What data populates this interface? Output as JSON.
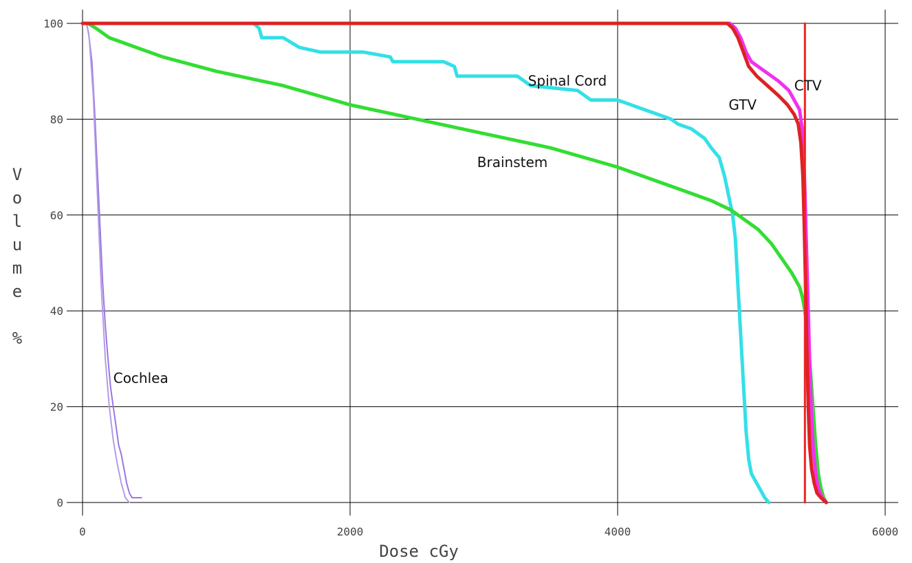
{
  "chart_data": {
    "type": "line",
    "xlabel": "Dose cGy",
    "ylabel": "Volume %",
    "xlim": [
      0,
      6000
    ],
    "ylim": [
      0,
      100
    ],
    "x_ticks": [
      0,
      2000,
      4000,
      6000
    ],
    "y_ticks": [
      0,
      20,
      40,
      60,
      80,
      100
    ],
    "grid": true,
    "series": [
      {
        "name": "Cochlea",
        "color": "#9977dd",
        "stroke_width": 2,
        "label_at": [
          230,
          25
        ],
        "x": [
          30,
          45,
          70,
          90,
          110,
          130,
          150,
          170,
          190,
          210,
          230,
          250,
          270,
          290,
          310,
          330,
          350,
          370,
          390,
          410,
          440
        ],
        "y": [
          100,
          98,
          92,
          82,
          70,
          58,
          46,
          37,
          30,
          24,
          20,
          16,
          12,
          10,
          7,
          4,
          2,
          1,
          1,
          1,
          1
        ]
      },
      {
        "name": "",
        "color": "#b49be8",
        "stroke_width": 2,
        "x": [
          30,
          50,
          80,
          110,
          140,
          170,
          200,
          230,
          260,
          290,
          320,
          350
        ],
        "y": [
          100,
          97,
          85,
          65,
          45,
          30,
          20,
          13,
          8,
          4,
          1,
          0
        ]
      },
      {
        "name": "Spinal Cord",
        "color": "#33e0e8",
        "stroke_width": 5,
        "label_at": [
          3330,
          87
        ],
        "x": [
          1280,
          1320,
          1340,
          1500,
          1560,
          1620,
          1780,
          1800,
          2100,
          2300,
          2320,
          2700,
          2780,
          2800,
          3250,
          3350,
          3700,
          3800,
          4000,
          4100,
          4200,
          4300,
          4400,
          4450,
          4550,
          4600,
          4650,
          4700,
          4760,
          4800,
          4860,
          4880,
          4890,
          4900,
          4910,
          4920,
          4930,
          4940,
          4950,
          4960,
          4980,
          5000,
          5040,
          5080,
          5100,
          5130
        ],
        "y": [
          100,
          99,
          97,
          97,
          96,
          95,
          94,
          94,
          94,
          93,
          92,
          92,
          91,
          89,
          89,
          87,
          86,
          84,
          84,
          83,
          82,
          81,
          80,
          79,
          78,
          77,
          76,
          74,
          72,
          68,
          60,
          55,
          50,
          45,
          40,
          35,
          30,
          25,
          20,
          15,
          9,
          6,
          4,
          2,
          1,
          0
        ]
      },
      {
        "name": "Brainstem",
        "color": "#33dd33",
        "stroke_width": 5,
        "label_at": [
          2950,
          70
        ],
        "x": [
          40,
          100,
          200,
          400,
          600,
          1000,
          1500,
          2000,
          2500,
          3000,
          3500,
          4000,
          4300,
          4500,
          4700,
          4850,
          4950,
          5050,
          5150,
          5250,
          5300,
          5340,
          5360,
          5380,
          5400,
          5420,
          5440,
          5460,
          5480,
          5500,
          5520,
          5540,
          5560
        ],
        "y": [
          100,
          99,
          97,
          95,
          93,
          90,
          87,
          83,
          80,
          77,
          74,
          70,
          67,
          65,
          63,
          61,
          59,
          57,
          54,
          50,
          48,
          46,
          45,
          43,
          40,
          35,
          28,
          20,
          12,
          6,
          3,
          1,
          0
        ]
      },
      {
        "name": "CTV",
        "color": "#ee33ee",
        "stroke_width": 5,
        "label_at": [
          5320,
          86
        ],
        "x": [
          0,
          4840,
          4880,
          4920,
          4960,
          5000,
          5100,
          5200,
          5280,
          5320,
          5360,
          5380,
          5390,
          5400,
          5410,
          5420,
          5430,
          5440,
          5450,
          5460,
          5480,
          5500,
          5530,
          5560
        ],
        "y": [
          100,
          100,
          99,
          97,
          94,
          92,
          90,
          88,
          86,
          84,
          82,
          78,
          72,
          65,
          55,
          45,
          35,
          25,
          18,
          12,
          6,
          3,
          1,
          0
        ]
      },
      {
        "name": "GTV",
        "color": "#dd2222",
        "stroke_width": 5,
        "label_at": [
          4830,
          82
        ],
        "x": [
          0,
          4820,
          4860,
          4900,
          4940,
          4980,
          5040,
          5120,
          5200,
          5270,
          5320,
          5350,
          5370,
          5385,
          5395,
          5405,
          5415,
          5425,
          5435,
          5450,
          5470,
          5490,
          5520,
          5560
        ],
        "y": [
          100,
          100,
          99,
          97,
          94,
          91,
          89,
          87,
          85,
          83,
          81,
          79,
          75,
          68,
          58,
          45,
          32,
          20,
          12,
          7,
          4,
          2,
          1,
          0
        ]
      },
      {
        "name": "",
        "color": "#ee2222",
        "stroke_width": 3,
        "x": [
          5400,
          5400
        ],
        "y": [
          0,
          100
        ]
      }
    ]
  }
}
